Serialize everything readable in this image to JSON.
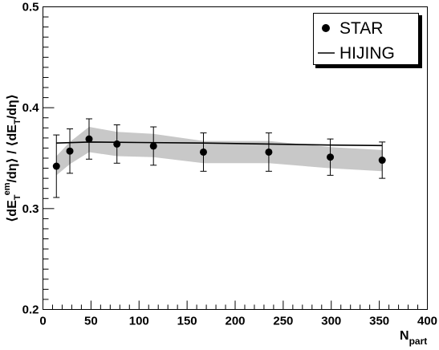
{
  "chart_data": {
    "type": "scatter",
    "xlabel_main": "N",
    "xlabel_sub": "part",
    "ylabel": {
      "open": "⟨",
      "d1": "dE",
      "sub": "T",
      "sup": "em",
      "rest1": "/dη⟩ / ⟨dE",
      "sub2": "T",
      "rest2": "/dη⟩"
    },
    "xlim": [
      0,
      400
    ],
    "ylim": [
      0.2,
      0.5
    ],
    "xticks": [
      "0",
      "50",
      "100",
      "150",
      "200",
      "250",
      "300",
      "350",
      "400"
    ],
    "yticks": [
      "0.2",
      "0.3",
      "0.4",
      "0.5"
    ],
    "legend_position": "top-right",
    "series": [
      {
        "name": "STAR",
        "kind": "points",
        "points": [
          {
            "x": 14,
            "y": 0.342,
            "err_low": 0.031,
            "err_high": 0.031
          },
          {
            "x": 28,
            "y": 0.357,
            "err_low": 0.022,
            "err_high": 0.022
          },
          {
            "x": 48,
            "y": 0.369,
            "err_low": 0.02,
            "err_high": 0.02
          },
          {
            "x": 77,
            "y": 0.364,
            "err_low": 0.019,
            "err_high": 0.019
          },
          {
            "x": 115,
            "y": 0.362,
            "err_low": 0.019,
            "err_high": 0.019
          },
          {
            "x": 167,
            "y": 0.356,
            "err_low": 0.019,
            "err_high": 0.019
          },
          {
            "x": 235,
            "y": 0.356,
            "err_low": 0.019,
            "err_high": 0.019
          },
          {
            "x": 299,
            "y": 0.351,
            "err_low": 0.018,
            "err_high": 0.018
          },
          {
            "x": 353,
            "y": 0.348,
            "err_low": 0.018,
            "err_high": 0.018
          }
        ],
        "systematic_band": [
          {
            "x": 14,
            "low": 0.333,
            "high": 0.352
          },
          {
            "x": 28,
            "low": 0.344,
            "high": 0.366
          },
          {
            "x": 48,
            "low": 0.356,
            "high": 0.381
          },
          {
            "x": 77,
            "low": 0.352,
            "high": 0.376
          },
          {
            "x": 115,
            "low": 0.351,
            "high": 0.374
          },
          {
            "x": 167,
            "low": 0.345,
            "high": 0.367
          },
          {
            "x": 235,
            "low": 0.345,
            "high": 0.367
          },
          {
            "x": 299,
            "low": 0.34,
            "high": 0.361
          },
          {
            "x": 353,
            "low": 0.337,
            "high": 0.358
          }
        ]
      },
      {
        "name": "HIJING",
        "kind": "line",
        "points": [
          {
            "x": 14,
            "y": 0.365
          },
          {
            "x": 48,
            "y": 0.366
          },
          {
            "x": 100,
            "y": 0.3655
          },
          {
            "x": 167,
            "y": 0.365
          },
          {
            "x": 235,
            "y": 0.364
          },
          {
            "x": 299,
            "y": 0.363
          },
          {
            "x": 353,
            "y": 0.3625
          }
        ]
      }
    ],
    "colors": {
      "band": "#c8c8c8",
      "marker": "#000000",
      "line": "#000000",
      "frame": "#000000"
    }
  }
}
